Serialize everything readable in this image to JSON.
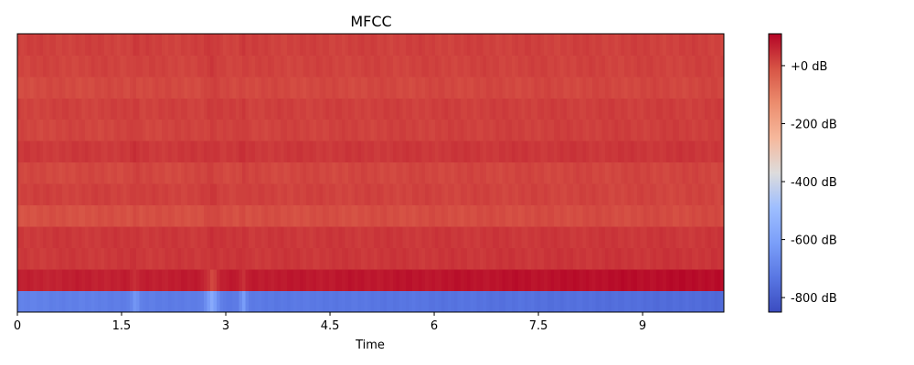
{
  "chart_data": {
    "type": "heatmap",
    "title": "MFCC",
    "xlabel": "Time",
    "ylabel": "",
    "xlim": [
      0,
      10.17
    ],
    "x_ticks": [
      0,
      1.5,
      3,
      4.5,
      6,
      7.5,
      9
    ],
    "x_tick_labels": [
      "0",
      "1.5",
      "3",
      "4.5",
      "6",
      "7.5",
      "9"
    ],
    "n_coefficients": 13,
    "coefficient_order": "bottom-to-top (row 0 = bottom)",
    "colormap": "coolwarm",
    "colorbar": {
      "vmin": -850,
      "vmax": 110,
      "ticks": [
        0,
        -200,
        -400,
        -600,
        -800
      ],
      "tick_labels": [
        "+0 dB",
        "-200 dB",
        "-400 dB",
        "-600 dB",
        "-800 dB"
      ],
      "placement": "right"
    },
    "rows": [
      {
        "coef": 0,
        "base": -700,
        "end": -765
      },
      {
        "coef": 1,
        "base": 65,
        "end": 100
      },
      {
        "coef": 2,
        "base": 30,
        "end": 38
      },
      {
        "coef": 3,
        "base": 32,
        "end": 34
      },
      {
        "coef": 4,
        "base": -5,
        "end": 5
      },
      {
        "coef": 5,
        "base": 20,
        "end": 14
      },
      {
        "coef": 6,
        "base": 8,
        "end": 14
      },
      {
        "coef": 7,
        "base": 30,
        "end": 36
      },
      {
        "coef": 8,
        "base": 12,
        "end": 24
      },
      {
        "coef": 9,
        "base": 18,
        "end": 24
      },
      {
        "coef": 10,
        "base": 5,
        "end": 12
      },
      {
        "coef": 11,
        "base": 15,
        "end": 18
      },
      {
        "coef": 12,
        "base": 20,
        "end": 20
      }
    ],
    "events": [
      {
        "t": 1.7,
        "width": 0.08,
        "coef0_delta": 90,
        "coef1_delta": -40
      },
      {
        "t": 2.8,
        "width": 0.15,
        "coef0_delta": 150,
        "coef1_delta": -60
      },
      {
        "t": 3.25,
        "width": 0.07,
        "coef0_delta": 120,
        "coef1_delta": -50
      }
    ]
  }
}
